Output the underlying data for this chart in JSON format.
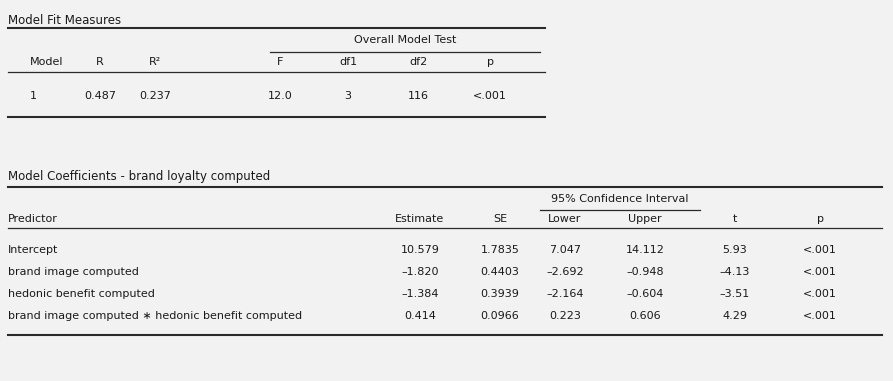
{
  "title1": "Model Fit Measures",
  "title2": "Model Coefficients - brand loyalty computed",
  "table1_span_header": "Overall Model Test",
  "table1_col_headers": [
    "Model",
    "R",
    "R²",
    "F",
    "df1",
    "df2",
    "p"
  ],
  "table1_rows": [
    [
      "1",
      "0.487",
      "0.237",
      "12.0",
      "3",
      "116",
      "<.001"
    ]
  ],
  "table2_span_header": "95% Confidence Interval",
  "table2_col_headers": [
    "Predictor",
    "Estimate",
    "SE",
    "Lower",
    "Upper",
    "t",
    "p"
  ],
  "table2_rows": [
    [
      "Intercept",
      "10.579",
      "1.7835",
      "7.047",
      "14.112",
      "5.93",
      "<.001"
    ],
    [
      "brand image computed",
      "–1.820",
      "0.4403",
      "–2.692",
      "–0.948",
      "–4.13",
      "<.001"
    ],
    [
      "hedonic benefit computed",
      "–1.384",
      "0.3939",
      "–2.164",
      "–0.604",
      "–3.51",
      "<.001"
    ],
    [
      "brand image computed ∗ hedonic benefit computed",
      "0.414",
      "0.0966",
      "0.223",
      "0.606",
      "4.29",
      "<.001"
    ]
  ],
  "bg_color": "#f2f2f2",
  "text_color": "#1a1a1a",
  "line_color": "#2a2a2a",
  "font_size": 8.0,
  "title_font_size": 8.5
}
